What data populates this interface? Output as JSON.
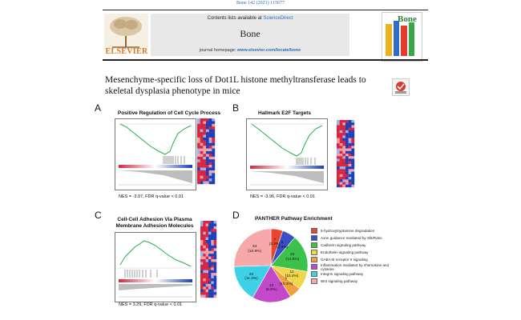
{
  "header": {
    "citation": "Bone 142 (2021) 115677",
    "contents_prefix": "Contents lists available at ",
    "contents_link": "ScienceDirect",
    "journal_name": "Bone",
    "homepage_prefix": "journal homepage: ",
    "homepage_url": "www.elsevier.com/locate/bone",
    "publisher_logo_text": "ELSEVIER",
    "cover_title": "Bone"
  },
  "article": {
    "title": "Mesenchyme-specific loss of Dot1L histone methyltransferase leads to skeletal dysplasia phenotype in mice"
  },
  "figure": {
    "panel_a": {
      "letter": "A",
      "title": "Positive Regulation of Cell Cycle Process",
      "stat": "NES = -3.97, FDR q-value < 0.01"
    },
    "panel_b": {
      "letter": "B",
      "title": "Hallmark E2F Targets",
      "stat": "NES = -3.96, FDR q-value < 0.01"
    },
    "panel_c": {
      "letter": "C",
      "title": "Cell-Cell Adhesion Via Plasma Membrane Adhesion Molecules",
      "stat": "NES = 3.29, FDR q-value < 0.01"
    },
    "panel_d": {
      "letter": "D",
      "title": "PANTHER Pathway Enrichment",
      "colors": [
        "#e8452c",
        "#3b4fc4",
        "#3cc24a",
        "#f2d64a",
        "#f2a23c",
        "#c24ac8",
        "#3dd1e8",
        "#f7a8a8"
      ]
    }
  },
  "chart_data": {
    "type": "pie",
    "title": "PANTHER Pathway Enrichment",
    "categories": [
      "5-hydroxytryptamine degradation",
      "Axon guidance mediated by Slit/Robo",
      "Cadherin signaling pathway",
      "Endothelin signaling pathway",
      "GABA-B receptor II signaling",
      "Inflammation mediated by chemokine and cytokine",
      "Integrin signaling pathway",
      "Wnt signaling pathway"
    ],
    "values": [
      7,
      8,
      22,
      11,
      7,
      23,
      22,
      34
    ],
    "labels": [
      "7\n(3.3%)",
      "8\n(2.9%)",
      "22\n(14.5%)",
      "11\n(10.4%)",
      "7\n(10.4%)",
      "23\n(8.9%)",
      "22\n(11.4%)",
      "34\n(10.9%)"
    ],
    "legend": "right"
  }
}
